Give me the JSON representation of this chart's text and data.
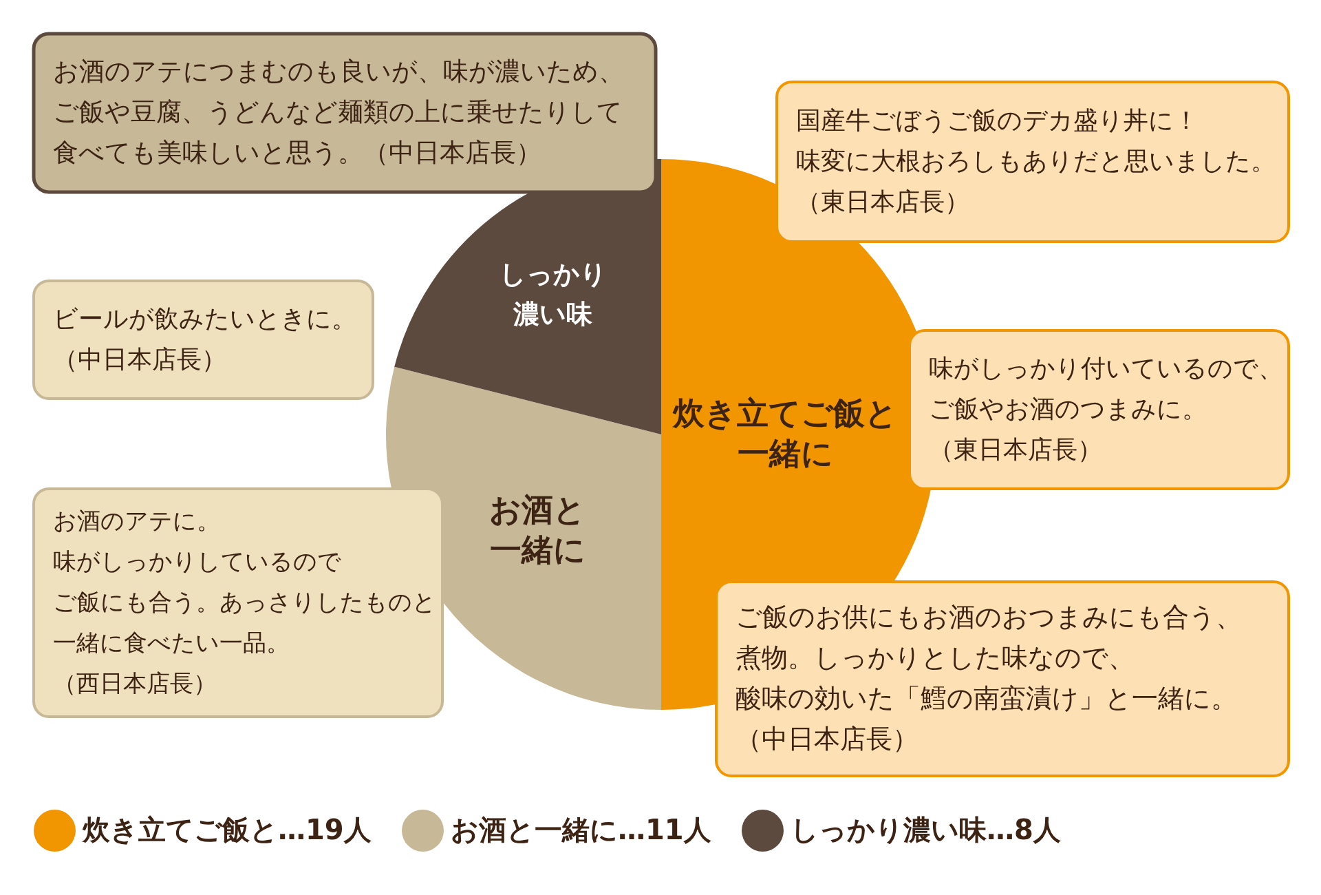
{
  "chart_data": {
    "type": "pie",
    "categories": [
      "炊き立てご飯と…19人",
      "お酒と一緒に…11人",
      "しっかり濃い味…8人"
    ],
    "values": [
      19,
      11,
      8
    ],
    "colors": [
      "#f29600",
      "#c7b998",
      "#5c4a3e"
    ],
    "legend": "bottom",
    "annotations": [
      "お酒のアテにつまむのも良いが、味が濃いため、ご飯や豆腐、うどんなど麺類の上に乗せたりして食べても美味しいと思う。（中日本店長）",
      "国産牛ごぼうご飯のデカ盛り丼に！味変に大根おろしもありだと思いました。（東日本店長）",
      "しっかり濃い味",
      "ビールが飲みたいときに。（中日本店長）",
      "味がしっかり付いているので、ご飯やお酒のつまみに。（東日本店長）",
      "炊き立てご飯と一緒に",
      "お酒のアテに。味がしっかりしているのでご飯にも合う。あっさりしたものと一緒に食べたい一品。（西日本店長）",
      "お酒と一緒に",
      "ご飯のお供にもお酒のおつまみにも合う、煮物。しっかりとした味なので、酸味の効いた「鱈の南蛮漬け」と一緒に。（中日本店長）"
    ]
  }
}
